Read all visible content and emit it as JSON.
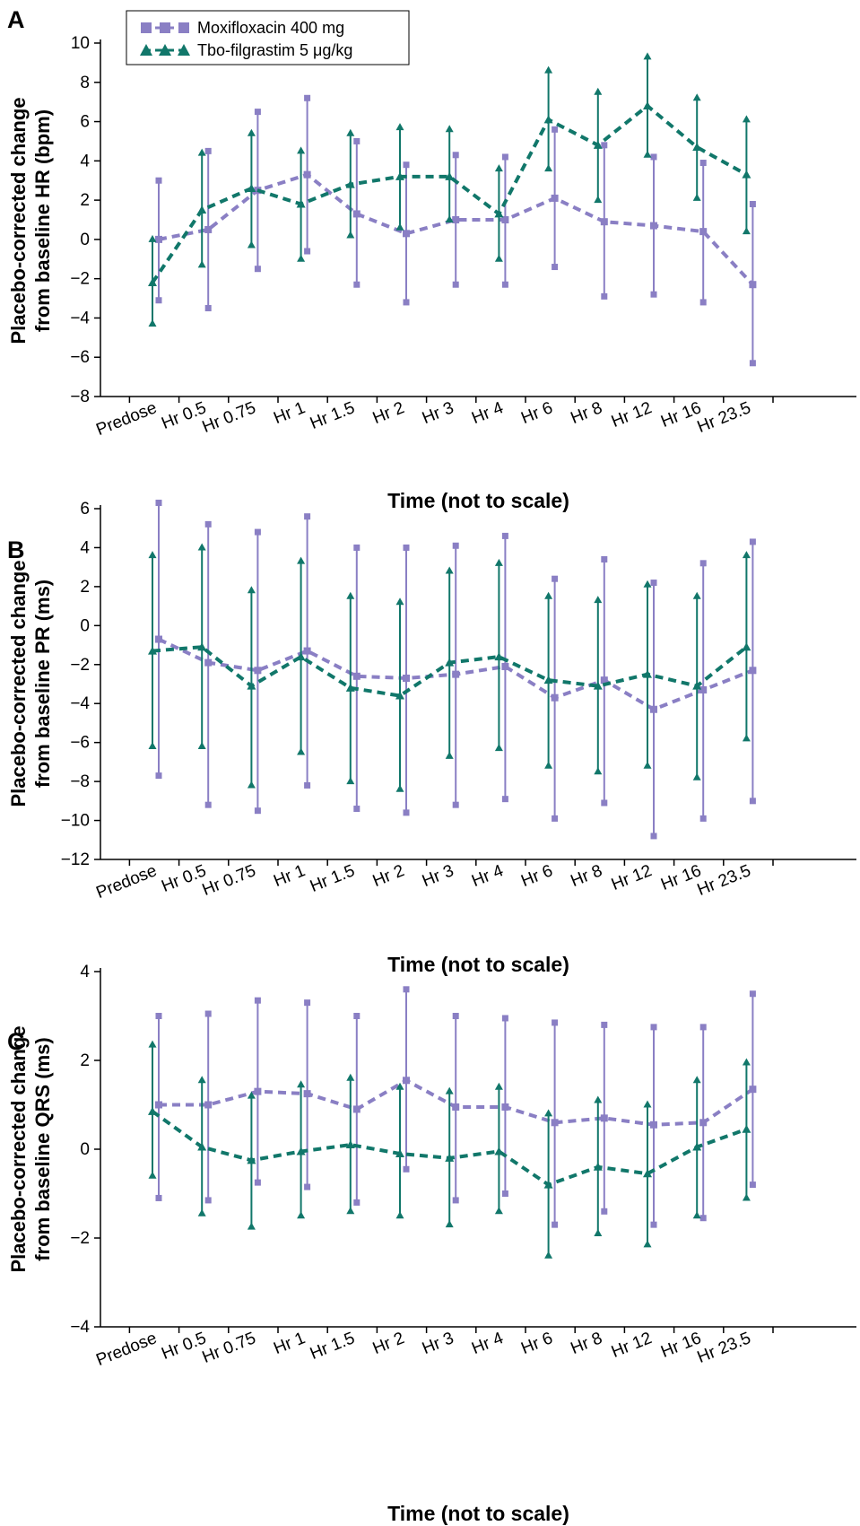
{
  "legend": {
    "items": [
      {
        "label": "Moxifloxacin 400 mg",
        "color": "#8a7fc4",
        "marker": "square"
      },
      {
        "label": "Tbo-filgrastim 5 μg/kg",
        "color": "#11776a",
        "marker": "triangle"
      }
    ]
  },
  "chart_data": [
    {
      "type": "line",
      "panel": "A",
      "xlabel": "Time (not to scale)",
      "ylabel_lines": [
        "Placebo-corrected change",
        "from baseline HR (bpm)"
      ],
      "categories": [
        "Predose",
        "Hr 0.5",
        "Hr 0.75",
        "Hr 1",
        "Hr 1.5",
        "Hr 2",
        "Hr 3",
        "Hr 4",
        "Hr 6",
        "Hr 8",
        "Hr 12",
        "Hr 16",
        "Hr 23.5"
      ],
      "ylim": [
        -8,
        10
      ],
      "yticks": [
        -8,
        -6,
        -4,
        -2,
        0,
        2,
        4,
        6,
        8,
        10
      ],
      "grid": false,
      "series": [
        {
          "name": "Moxifloxacin 400 mg",
          "values": [
            0.0,
            0.5,
            2.5,
            3.3,
            1.3,
            0.3,
            1.0,
            1.0,
            2.1,
            0.9,
            0.7,
            0.4,
            -2.3
          ],
          "lower": [
            -3.1,
            -3.5,
            -1.5,
            -0.6,
            -2.3,
            -3.2,
            -2.3,
            -2.3,
            -1.4,
            -2.9,
            -2.8,
            -3.2,
            -6.3
          ],
          "upper": [
            3.0,
            4.5,
            6.5,
            7.2,
            5.0,
            3.8,
            4.3,
            4.2,
            5.6,
            4.8,
            4.2,
            3.9,
            1.8
          ]
        },
        {
          "name": "Tbo-filgrastim 5 μg/kg",
          "values": [
            -2.2,
            1.5,
            2.6,
            1.8,
            2.8,
            3.2,
            3.2,
            1.3,
            6.1,
            4.8,
            6.8,
            4.7,
            3.3
          ],
          "lower": [
            -4.3,
            -1.3,
            -0.3,
            -1.0,
            0.2,
            0.6,
            1.0,
            -1.0,
            3.6,
            2.0,
            4.3,
            2.1,
            0.4
          ],
          "upper": [
            0.0,
            4.4,
            5.4,
            4.5,
            5.4,
            5.7,
            5.6,
            3.6,
            8.6,
            7.5,
            9.3,
            7.2,
            6.1
          ]
        }
      ]
    },
    {
      "type": "line",
      "panel": "B",
      "xlabel": "Time (not to scale)",
      "ylabel_lines": [
        "Placebo-corrected change",
        "from baseline PR (ms)"
      ],
      "categories": [
        "Predose",
        "Hr 0.5",
        "Hr 0.75",
        "Hr 1",
        "Hr 1.5",
        "Hr 2",
        "Hr 3",
        "Hr 4",
        "Hr 6",
        "Hr 8",
        "Hr 12",
        "Hr 16",
        "Hr 23.5"
      ],
      "ylim": [
        -12,
        6
      ],
      "yticks": [
        -12,
        -10,
        -8,
        -6,
        -4,
        -2,
        0,
        2,
        4,
        6
      ],
      "grid": false,
      "series": [
        {
          "name": "Moxifloxacin 400 mg",
          "values": [
            -0.7,
            -1.9,
            -2.3,
            -1.3,
            -2.6,
            -2.7,
            -2.5,
            -2.1,
            -3.7,
            -2.8,
            -4.3,
            -3.3,
            -2.3
          ],
          "lower": [
            -7.7,
            -9.2,
            -9.5,
            -8.2,
            -9.4,
            -9.6,
            -9.2,
            -8.9,
            -9.9,
            -9.1,
            -10.8,
            -9.9,
            -9.0
          ],
          "upper": [
            6.3,
            5.2,
            4.8,
            5.6,
            4.0,
            4.0,
            4.1,
            4.6,
            2.4,
            3.4,
            2.2,
            3.2,
            4.3
          ]
        },
        {
          "name": "Tbo-filgrastim 5 μg/kg",
          "values": [
            -1.3,
            -1.1,
            -3.1,
            -1.6,
            -3.2,
            -3.6,
            -1.9,
            -1.6,
            -2.8,
            -3.1,
            -2.5,
            -3.1,
            -1.1
          ],
          "lower": [
            -6.2,
            -6.2,
            -8.2,
            -6.5,
            -8.0,
            -8.4,
            -6.7,
            -6.3,
            -7.2,
            -7.5,
            -7.2,
            -7.8,
            -5.8
          ],
          "upper": [
            3.6,
            4.0,
            1.8,
            3.3,
            1.5,
            1.2,
            2.8,
            3.2,
            1.5,
            1.3,
            2.1,
            1.5,
            3.6
          ]
        }
      ]
    },
    {
      "type": "line",
      "panel": "C",
      "xlabel": "Time (not to scale)",
      "ylabel_lines": [
        "Placebo-corrected change",
        "from baseline QRS (ms)"
      ],
      "categories": [
        "Predose",
        "Hr 0.5",
        "Hr 0.75",
        "Hr 1",
        "Hr 1.5",
        "Hr 2",
        "Hr 3",
        "Hr 4",
        "Hr 6",
        "Hr 8",
        "Hr 12",
        "Hr 16",
        "Hr 23.5"
      ],
      "ylim": [
        -4,
        4
      ],
      "yticks": [
        -4,
        -2,
        0,
        2,
        4
      ],
      "grid": false,
      "series": [
        {
          "name": "Moxifloxacin 400 mg",
          "values": [
            1.0,
            1.0,
            1.3,
            1.25,
            0.9,
            1.55,
            0.95,
            0.95,
            0.6,
            0.7,
            0.55,
            0.6,
            1.35
          ],
          "lower": [
            -1.1,
            -1.15,
            -0.75,
            -0.85,
            -1.2,
            -0.45,
            -1.15,
            -1.0,
            -1.7,
            -1.4,
            -1.7,
            -1.55,
            -0.8
          ],
          "upper": [
            3.0,
            3.05,
            3.35,
            3.3,
            3.0,
            3.6,
            3.0,
            2.95,
            2.85,
            2.8,
            2.75,
            2.75,
            3.5
          ]
        },
        {
          "name": "Tbo-filgrastim 5 μg/kg",
          "values": [
            0.85,
            0.05,
            -0.25,
            -0.05,
            0.1,
            -0.1,
            -0.2,
            -0.05,
            -0.8,
            -0.4,
            -0.55,
            0.05,
            0.45
          ],
          "lower": [
            -0.6,
            -1.45,
            -1.75,
            -1.5,
            -1.4,
            -1.5,
            -1.7,
            -1.4,
            -2.4,
            -1.9,
            -2.15,
            -1.5,
            -1.1
          ],
          "upper": [
            2.35,
            1.55,
            1.2,
            1.45,
            1.6,
            1.4,
            1.3,
            1.4,
            0.8,
            1.1,
            1.0,
            1.55,
            1.95
          ]
        }
      ]
    }
  ]
}
